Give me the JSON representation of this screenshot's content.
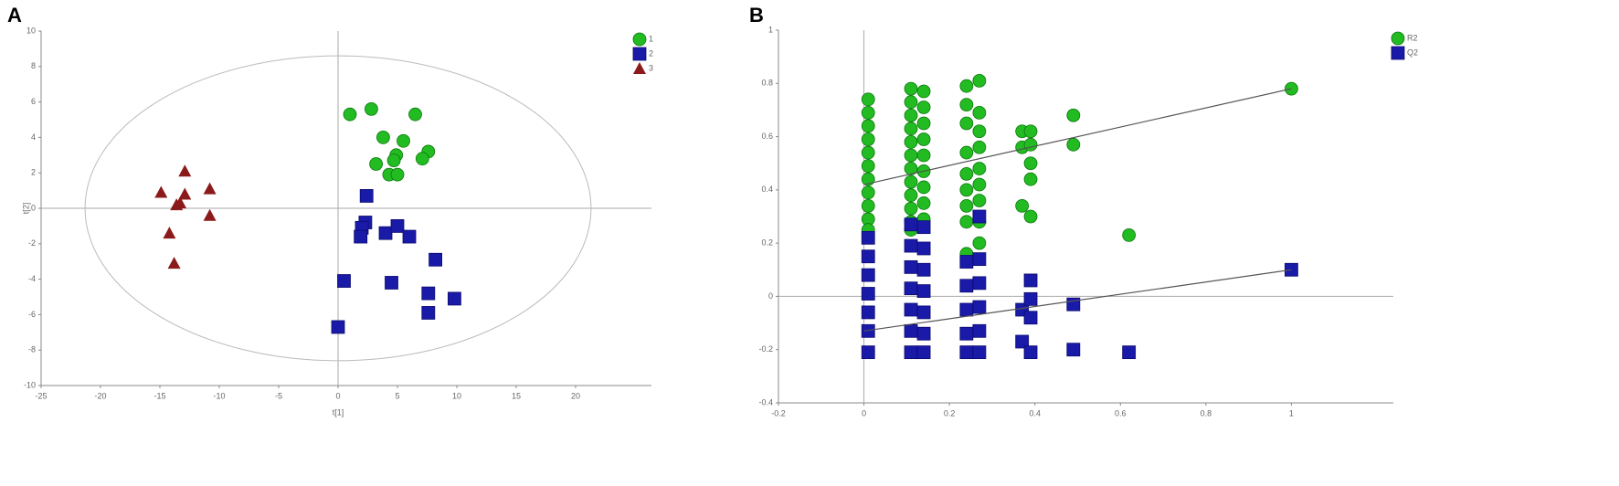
{
  "chart_data": [
    {
      "type": "scatter",
      "panel": "A",
      "x_label": "t[1]",
      "y_label": "t[2]",
      "xlim": [
        -25,
        25
      ],
      "ylim": [
        -10,
        10
      ],
      "xticks": [
        -25,
        -20,
        -15,
        -10,
        -5,
        0,
        5,
        10,
        15,
        20
      ],
      "yticks": [
        -10,
        -8,
        -6,
        -4,
        -2,
        0,
        2,
        4,
        6,
        8,
        10
      ],
      "grid": false,
      "legend": "top-right",
      "ellipse": [
        21.3,
        8.6
      ],
      "series": [
        {
          "name": "1",
          "color": "#22bb22",
          "marker": "circle",
          "x": [
            1.0,
            2.8,
            6.5,
            3.8,
            5.5,
            7.6,
            7.1,
            3.2,
            4.9,
            4.7,
            4.3,
            5.0
          ],
          "values": [
            5.3,
            5.6,
            5.3,
            4.0,
            3.8,
            3.2,
            2.8,
            2.5,
            3.0,
            2.7,
            1.9,
            1.9
          ]
        },
        {
          "name": "2",
          "color": "#1a1aa8",
          "marker": "square",
          "x": [
            2.4,
            2.3,
            2.0,
            1.9,
            4.0,
            5.0,
            6.0,
            8.2,
            0.5,
            4.5,
            7.6,
            9.8,
            7.6,
            0.0
          ],
          "values": [
            0.7,
            -0.8,
            -1.1,
            -1.6,
            -1.4,
            -1.0,
            -1.6,
            -2.9,
            -4.1,
            -4.2,
            -4.8,
            -5.1,
            -5.9,
            -6.7
          ]
        },
        {
          "name": "3",
          "color": "#8b1a1a",
          "marker": "triangle",
          "x": [
            -12.9,
            -14.9,
            -12.9,
            -10.8,
            -13.6,
            -13.3,
            -10.8,
            -14.2,
            -13.8
          ],
          "values": [
            2.1,
            0.9,
            0.8,
            1.1,
            0.2,
            0.3,
            -0.4,
            -1.4,
            -3.1
          ]
        }
      ]
    },
    {
      "type": "scatter",
      "panel": "B",
      "xlim": [
        -0.2,
        1.2
      ],
      "ylim": [
        -0.4,
        1
      ],
      "xticks": [
        -0.2,
        0,
        0.2,
        0.4,
        0.6,
        0.8,
        1
      ],
      "yticks": [
        -0.4,
        -0.2,
        0,
        0.2,
        0.4,
        0.6,
        0.8,
        1
      ],
      "grid": false,
      "legend": "top-right",
      "series": [
        {
          "name": "R2",
          "color": "#22bb22",
          "marker": "circle",
          "line_x": [
            0,
            1
          ],
          "line_y": [
            0.42,
            0.78
          ],
          "x": [
            0.01,
            0.01,
            0.01,
            0.01,
            0.01,
            0.01,
            0.01,
            0.01,
            0.01,
            0.01,
            0.01,
            0.11,
            0.11,
            0.11,
            0.11,
            0.11,
            0.11,
            0.11,
            0.11,
            0.11,
            0.11,
            0.11,
            0.11,
            0.14,
            0.14,
            0.14,
            0.14,
            0.14,
            0.14,
            0.14,
            0.14,
            0.14,
            0.24,
            0.24,
            0.24,
            0.24,
            0.24,
            0.24,
            0.24,
            0.24,
            0.24,
            0.27,
            0.27,
            0.27,
            0.27,
            0.27,
            0.27,
            0.27,
            0.27,
            0.27,
            0.37,
            0.37,
            0.37,
            0.39,
            0.39,
            0.39,
            0.39,
            0.39,
            0.49,
            0.49,
            0.62,
            1
          ],
          "values": [
            0.74,
            0.69,
            0.64,
            0.59,
            0.54,
            0.49,
            0.44,
            0.39,
            0.34,
            0.29,
            0.25,
            0.78,
            0.73,
            0.68,
            0.63,
            0.58,
            0.53,
            0.48,
            0.43,
            0.38,
            0.33,
            0.28,
            0.25,
            0.77,
            0.71,
            0.65,
            0.59,
            0.53,
            0.47,
            0.41,
            0.35,
            0.29,
            0.79,
            0.72,
            0.65,
            0.54,
            0.46,
            0.4,
            0.34,
            0.28,
            0.16,
            0.81,
            0.69,
            0.62,
            0.56,
            0.48,
            0.42,
            0.36,
            0.28,
            0.2,
            0.62,
            0.56,
            0.34,
            0.62,
            0.57,
            0.5,
            0.44,
            0.3,
            0.68,
            0.57,
            0.23,
            0.78
          ]
        },
        {
          "name": "Q2",
          "color": "#1a1aa8",
          "marker": "square",
          "line_x": [
            0,
            1
          ],
          "line_y": [
            -0.13,
            0.1
          ],
          "x": [
            0.01,
            0.01,
            0.01,
            0.01,
            0.01,
            0.01,
            0.01,
            0.11,
            0.11,
            0.11,
            0.11,
            0.11,
            0.11,
            0.11,
            0.14,
            0.14,
            0.14,
            0.14,
            0.14,
            0.14,
            0.14,
            0.24,
            0.24,
            0.24,
            0.24,
            0.24,
            0.27,
            0.27,
            0.27,
            0.27,
            0.27,
            0.27,
            0.37,
            0.37,
            0.39,
            0.39,
            0.39,
            0.39,
            0.49,
            0.49,
            0.62,
            1
          ],
          "values": [
            0.22,
            0.15,
            0.08,
            0.01,
            -0.06,
            -0.13,
            -0.21,
            0.27,
            0.19,
            0.11,
            0.03,
            -0.05,
            -0.13,
            -0.21,
            0.26,
            0.18,
            0.1,
            0.02,
            -0.06,
            -0.14,
            -0.21,
            0.13,
            0.04,
            -0.05,
            -0.14,
            -0.21,
            0.3,
            0.14,
            0.05,
            -0.04,
            -0.13,
            -0.21,
            -0.05,
            -0.17,
            0.06,
            -0.01,
            -0.08,
            -0.21,
            -0.03,
            -0.2,
            -0.21,
            0.1
          ]
        }
      ]
    }
  ]
}
